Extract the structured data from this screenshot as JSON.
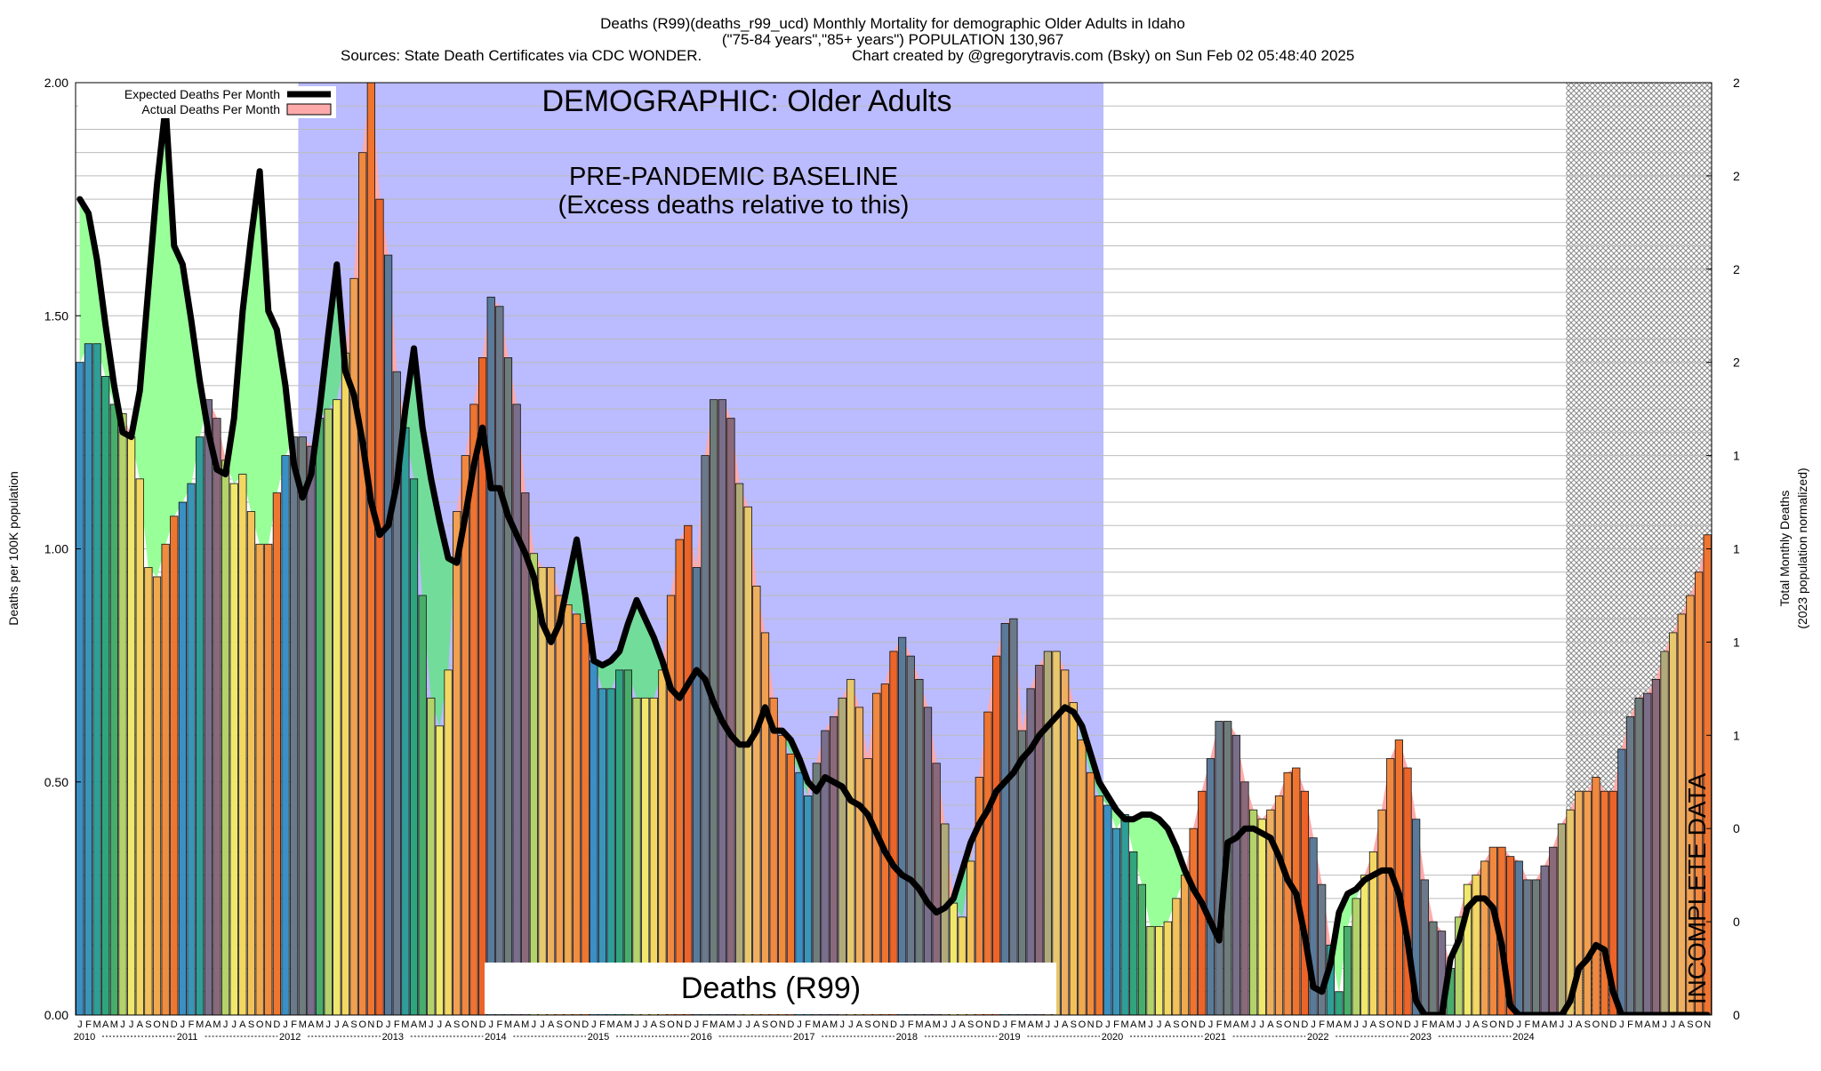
{
  "header": {
    "title_line1": "Deaths (R99)(deaths_r99_ucd) Monthly Mortality for demographic Older Adults in Idaho",
    "title_line2": "(\"75-84 years\",\"85+ years\") POPULATION 130,967",
    "title_line3_left": "Sources: State Death Certificates via CDC WONDER.",
    "title_line3_right": "Chart created by @gregorytravis.com (Bsky) on Sun Feb 02 05:48:40 2025"
  },
  "annotations": {
    "demographic": "DEMOGRAPHIC: Older Adults",
    "baseline_line1": "PRE-PANDEMIC BASELINE",
    "baseline_line2": "(Excess deaths relative to this)",
    "cause_label": "Deaths (R99)",
    "incomplete": "INCOMPLETE DATA"
  },
  "legend": {
    "expected": "Expected Deaths Per Month",
    "actual": "Actual Deaths Per Month"
  },
  "axes": {
    "ylabel_left": "Deaths per 100K population",
    "ylabel_right_line1": "Total Monthly Deaths",
    "ylabel_right_line2": "(2023 population normalized)",
    "left_ticks": [
      "0.00",
      "0.50",
      "1.00",
      "1.50",
      "2.00"
    ],
    "right_ticks": [
      "0",
      "0",
      "0",
      "1",
      "1",
      "1",
      "1",
      "2",
      "2",
      "2",
      "2"
    ],
    "month_letters": [
      "J",
      "F",
      "M",
      "A",
      "M",
      "J",
      "J",
      "A",
      "S",
      "O",
      "N",
      "D"
    ]
  },
  "colors": {
    "baseline_shade": "#bbbbff",
    "deficit_fill": "#99ff99",
    "deficit_fill_in_baseline": "#72dd9a",
    "excess_fill": "#ffaaaa",
    "expected_line": "#000000",
    "incomplete_hatch": "#999999"
  },
  "chart_data": {
    "type": "bar",
    "title": "Deaths (R99)(deaths_r99_ucd) Monthly Mortality for demographic Older Adults in Idaho",
    "ylabel": "Deaths per 100K population",
    "ylim": [
      0,
      2
    ],
    "start": "2010-01",
    "years": [
      "2010",
      "2011",
      "2012",
      "2013",
      "2014",
      "2015",
      "2016",
      "2017",
      "2018",
      "2019",
      "2020",
      "2021",
      "2022",
      "2023",
      "2024"
    ],
    "baseline_period": [
      "2012-03",
      "2019-12"
    ],
    "incomplete_from": "2024-07",
    "legend_position": "top-left",
    "grid": true,
    "series": [
      {
        "name": "Actual Deaths Per Month",
        "values": [
          1.4,
          1.44,
          1.44,
          1.37,
          1.31,
          1.29,
          1.24,
          1.15,
          0.96,
          0.94,
          1.01,
          1.07,
          1.1,
          1.14,
          1.24,
          1.32,
          1.28,
          1.19,
          1.14,
          1.16,
          1.08,
          1.01,
          1.01,
          1.12,
          1.2,
          1.24,
          1.24,
          1.22,
          1.28,
          1.3,
          1.32,
          1.42,
          1.58,
          1.85,
          2.01,
          1.75,
          1.63,
          1.38,
          1.26,
          1.15,
          0.9,
          0.68,
          0.62,
          0.74,
          1.08,
          1.2,
          1.31,
          1.41,
          1.54,
          1.52,
          1.41,
          1.31,
          1.12,
          0.99,
          0.96,
          0.96,
          0.9,
          0.88,
          0.86,
          0.84,
          0.76,
          0.7,
          0.7,
          0.74,
          0.74,
          0.68,
          0.68,
          0.68,
          0.74,
          0.9,
          1.02,
          1.05,
          0.96,
          1.2,
          1.32,
          1.32,
          1.28,
          1.14,
          1.09,
          0.92,
          0.82,
          0.68,
          0.6,
          0.56,
          0.52,
          0.47,
          0.54,
          0.61,
          0.64,
          0.68,
          0.72,
          0.66,
          0.55,
          0.69,
          0.71,
          0.78,
          0.81,
          0.77,
          0.72,
          0.66,
          0.54,
          0.41,
          0.24,
          0.21,
          0.33,
          0.51,
          0.65,
          0.77,
          0.84,
          0.85,
          0.61,
          0.7,
          0.75,
          0.78,
          0.78,
          0.74,
          0.67,
          0.59,
          0.52,
          0.47,
          0.45,
          0.4,
          0.43,
          0.35,
          0.28,
          0.19,
          0.19,
          0.2,
          0.25,
          0.3,
          0.4,
          0.48,
          0.55,
          0.63,
          0.63,
          0.6,
          0.5,
          0.44,
          0.42,
          0.44,
          0.47,
          0.52,
          0.53,
          0.48,
          0.38,
          0.28,
          0.15,
          0.05,
          0.19,
          0.25,
          0.3,
          0.35,
          0.44,
          0.55,
          0.59,
          0.53,
          0.42,
          0.29,
          0.2,
          0.18,
          0.1,
          0.21,
          0.28,
          0.3,
          0.33,
          0.36,
          0.36,
          0.34,
          0.33,
          0.29,
          0.29,
          0.32,
          0.36,
          0.41,
          0.44,
          0.48,
          0.48,
          0.51,
          0.48,
          0.48,
          0.57,
          0.64,
          0.68,
          0.69,
          0.72,
          0.78,
          0.82,
          0.86,
          0.9,
          0.95,
          1.03
        ]
      },
      {
        "name": "Expected Deaths Per Month",
        "values": [
          1.75,
          1.72,
          1.62,
          1.48,
          1.35,
          1.25,
          1.24,
          1.34,
          1.56,
          1.78,
          1.95,
          1.65,
          1.61,
          1.49,
          1.36,
          1.25,
          1.17,
          1.16,
          1.28,
          1.51,
          1.67,
          1.81,
          1.51,
          1.47,
          1.35,
          1.18,
          1.11,
          1.16,
          1.3,
          1.46,
          1.61,
          1.38,
          1.33,
          1.23,
          1.1,
          1.03,
          1.05,
          1.14,
          1.3,
          1.43,
          1.26,
          1.15,
          1.06,
          0.98,
          0.97,
          1.07,
          1.18,
          1.26,
          1.13,
          1.13,
          1.07,
          1.03,
          0.99,
          0.94,
          0.84,
          0.8,
          0.84,
          0.93,
          1.02,
          0.9,
          0.76,
          0.75,
          0.76,
          0.78,
          0.84,
          0.89,
          0.85,
          0.81,
          0.76,
          0.7,
          0.68,
          0.71,
          0.74,
          0.72,
          0.67,
          0.63,
          0.6,
          0.58,
          0.58,
          0.61,
          0.66,
          0.61,
          0.61,
          0.59,
          0.55,
          0.5,
          0.48,
          0.51,
          0.5,
          0.49,
          0.46,
          0.45,
          0.43,
          0.39,
          0.35,
          0.32,
          0.3,
          0.29,
          0.27,
          0.24,
          0.22,
          0.23,
          0.25,
          0.31,
          0.37,
          0.41,
          0.44,
          0.48,
          0.5,
          0.52,
          0.55,
          0.57,
          0.6,
          0.62,
          0.64,
          0.66,
          0.65,
          0.62,
          0.56,
          0.5,
          0.47,
          0.44,
          0.42,
          0.42,
          0.43,
          0.43,
          0.42,
          0.4,
          0.36,
          0.31,
          0.27,
          0.24,
          0.2,
          0.16,
          0.37,
          0.38,
          0.4,
          0.4,
          0.39,
          0.38,
          0.34,
          0.29,
          0.26,
          0.17,
          0.06,
          0.05,
          0.11,
          0.22,
          0.26,
          0.27,
          0.29,
          0.3,
          0.31,
          0.31,
          0.26,
          0.16,
          0.03,
          0.0,
          0.0,
          0.0,
          0.12,
          0.16,
          0.23,
          0.25,
          0.25,
          0.23,
          0.15,
          0.02,
          0.0,
          0.0,
          0.0,
          0.0,
          0.0,
          0.0,
          0.03,
          0.1,
          0.12,
          0.15,
          0.14,
          0.05,
          0.0,
          0.0,
          0.0,
          0.0,
          0.0,
          0.0,
          0.0,
          0.0,
          0.0,
          0.0,
          0.0,
          0.0
        ]
      }
    ]
  }
}
